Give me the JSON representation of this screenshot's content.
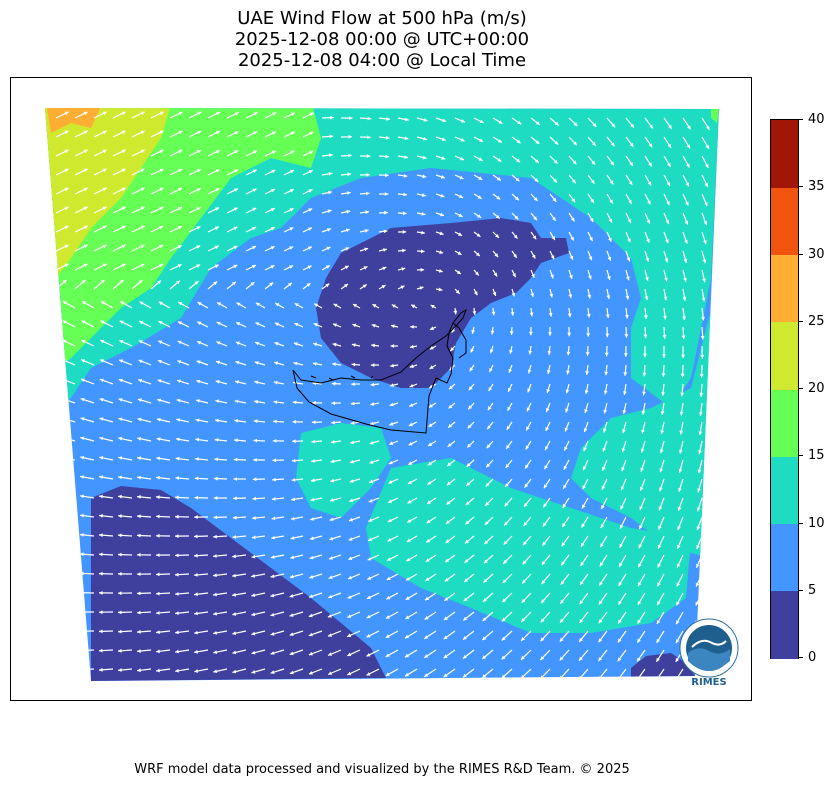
{
  "title": {
    "line1": "UAE Wind Flow at 500 hPa (m/s)",
    "line2": "2025-12-08 00:00 @ UTC+00:00",
    "line3": "2025-12-08 04:00 @ Local Time"
  },
  "colorbar": {
    "ticks": [
      "0",
      "5",
      "10",
      "15",
      "20",
      "25",
      "30",
      "35",
      "40"
    ],
    "colors": [
      "#3f3f9e",
      "#4395ff",
      "#1edcc2",
      "#66ff55",
      "#cfe92e",
      "#ffad33",
      "#f0540f",
      "#a21607"
    ]
  },
  "logo": {
    "text": "RIMES",
    "ring_text": "Regional Integrated Multi-Hazard Early Warning System"
  },
  "footer": "WRF model data processed and visualized by the RIMES R&D Team. © 2025",
  "map_colors": {
    "level_0_5": "#3f3f9e",
    "level_5_10": "#4395ff",
    "level_10_15": "#1edcc2",
    "level_15_20": "#66ff55",
    "level_20_25": "#cfe92e",
    "level_25_30": "#ffad33",
    "arrows": "#ffffff",
    "coastline": "#000000"
  }
}
